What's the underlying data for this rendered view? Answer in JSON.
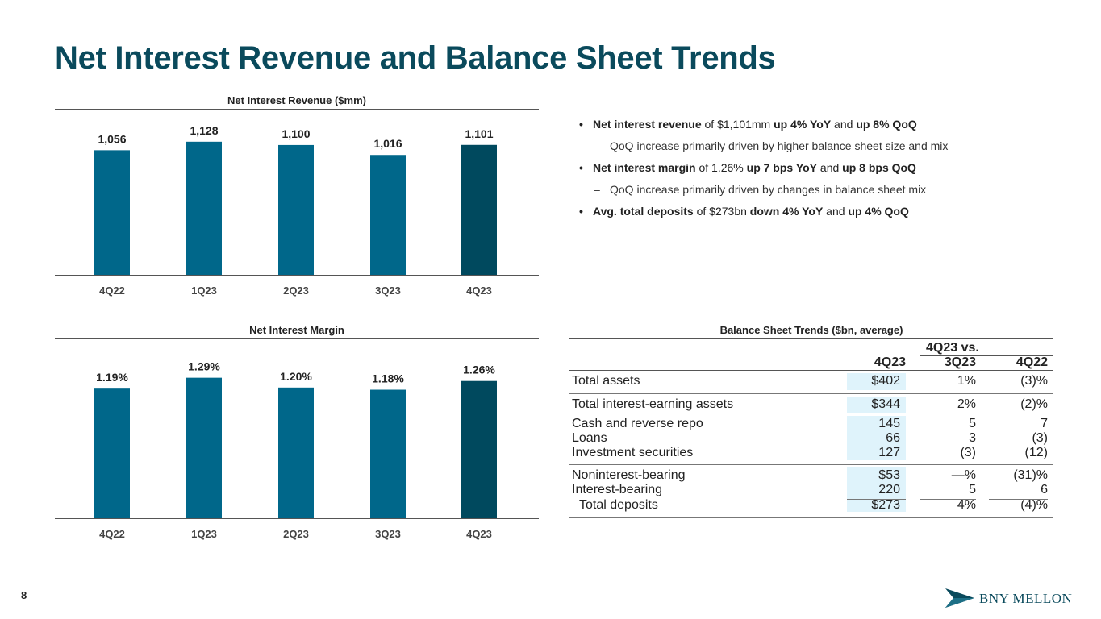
{
  "slide": {
    "title": "Net Interest Revenue and Balance Sheet Trends",
    "page_number": "8",
    "logo_text": "BNY MELLON"
  },
  "colors": {
    "title": "#0a4a5c",
    "bar": "#00678a",
    "bar_highlight": "#00495e",
    "shade": "#dff3fb"
  },
  "chart_data": [
    {
      "type": "bar",
      "title": "Net Interest Revenue ($mm)",
      "categories": [
        "4Q22",
        "1Q23",
        "2Q23",
        "3Q23",
        "4Q23"
      ],
      "values": [
        1056,
        1128,
        1100,
        1016,
        1101
      ],
      "labels": [
        "1,056",
        "1,128",
        "1,100",
        "1,016",
        "1,101"
      ],
      "highlight_index": 4,
      "ylim": [
        0,
        1400
      ],
      "xlabel": "",
      "ylabel": ""
    },
    {
      "type": "bar",
      "title": "Net Interest Margin",
      "categories": [
        "4Q22",
        "1Q23",
        "2Q23",
        "3Q23",
        "4Q23"
      ],
      "values": [
        1.19,
        1.29,
        1.2,
        1.18,
        1.26
      ],
      "labels": [
        "1.19%",
        "1.29%",
        "1.20%",
        "1.18%",
        "1.26%"
      ],
      "highlight_index": 4,
      "ylim": [
        0,
        1.65
      ],
      "xlabel": "",
      "ylabel": ""
    }
  ],
  "bullets": [
    {
      "kind": "bullet",
      "parts": [
        {
          "t": "Net interest revenue",
          "b": true
        },
        {
          "t": " of $1,101mm ",
          "b": false
        },
        {
          "t": "up 4% YoY",
          "b": true
        },
        {
          "t": " and ",
          "b": false
        },
        {
          "t": "up 8% QoQ",
          "b": true
        }
      ]
    },
    {
      "kind": "sub",
      "parts": [
        {
          "t": "QoQ increase primarily driven by higher balance sheet size and mix",
          "b": false
        }
      ]
    },
    {
      "kind": "bullet",
      "parts": [
        {
          "t": "Net interest margin",
          "b": true
        },
        {
          "t": " of 1.26% ",
          "b": false
        },
        {
          "t": "up 7 bps YoY",
          "b": true
        },
        {
          "t": " and ",
          "b": false
        },
        {
          "t": "up 8 bps QoQ",
          "b": true
        }
      ]
    },
    {
      "kind": "sub",
      "parts": [
        {
          "t": "QoQ increase primarily driven by changes in balance sheet mix",
          "b": false
        }
      ]
    },
    {
      "kind": "bullet",
      "parts": [
        {
          "t": "Avg. total deposits",
          "b": true
        },
        {
          "t": " of $273bn ",
          "b": false
        },
        {
          "t": "down 4% YoY",
          "b": true
        },
        {
          "t": " and ",
          "b": false
        },
        {
          "t": "up 4% QoQ",
          "b": true
        }
      ]
    }
  ],
  "balance_sheet": {
    "title": "Balance Sheet Trends ($bn, average)",
    "group_header": "4Q23 vs.",
    "columns": [
      "4Q23",
      "3Q23",
      "4Q22"
    ],
    "rows": [
      {
        "label": "Total assets",
        "v": [
          "$402",
          "1%",
          "(3)%"
        ]
      },
      {
        "label": "Total interest-earning assets",
        "v": [
          "$344",
          "2%",
          "(2)%"
        ]
      },
      {
        "label": "Cash and reverse repo",
        "v": [
          "145",
          "5",
          "7"
        ]
      },
      {
        "label": "Loans",
        "v": [
          "66",
          "3",
          "(3)"
        ]
      },
      {
        "label": "Investment securities",
        "v": [
          "127",
          "(3)",
          "(12)"
        ]
      },
      {
        "label": "Noninterest-bearing",
        "v": [
          "$53",
          "—%",
          "(31)%"
        ]
      },
      {
        "label": "Interest-bearing",
        "v": [
          "220",
          "5",
          "6"
        ]
      },
      {
        "label": "Total deposits",
        "v": [
          "$273",
          "4%",
          "(4)%"
        ]
      }
    ]
  }
}
